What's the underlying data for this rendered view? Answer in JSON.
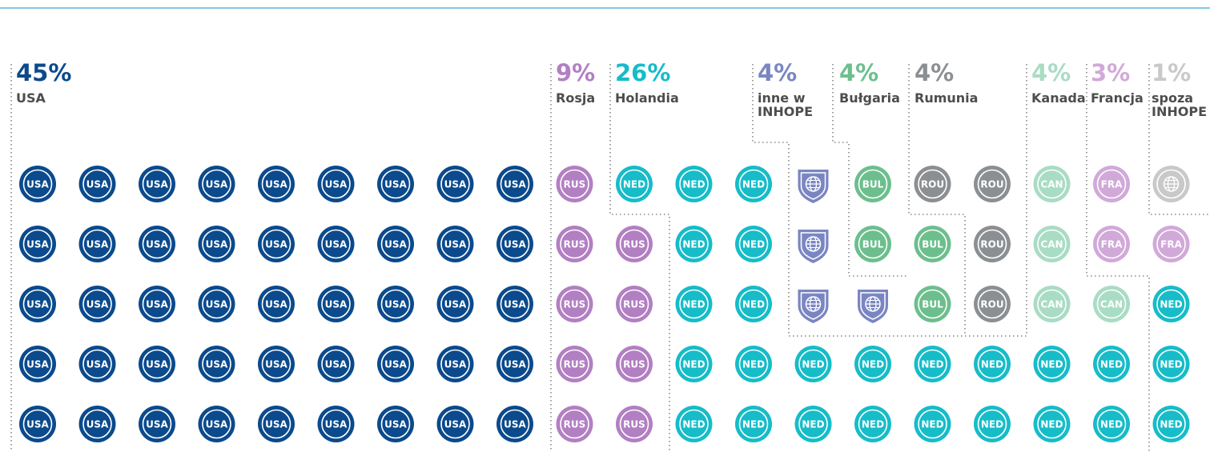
{
  "chart_data": {
    "type": "pictogram",
    "series": [
      {
        "name": "USA",
        "code": "USA",
        "color": "#0b4a8c",
        "values": [
          45
        ],
        "value_labels": [
          "45%"
        ]
      },
      {
        "name": "Rosja",
        "code": "RUS",
        "color": "#b27fc2",
        "values": [
          9
        ],
        "value_labels": [
          "9%"
        ]
      },
      {
        "name": "Holandia",
        "code": "NED",
        "color": "#16bcc8",
        "values": [
          26
        ],
        "value_labels": [
          "26%"
        ]
      },
      {
        "name": "inne w INHOPE",
        "color": "#7a86c2",
        "values": [
          4
        ],
        "value_labels": [
          "4%"
        ]
      },
      {
        "name": "Bułgaria",
        "code": "BUL",
        "color": "#6cbf8d",
        "values": [
          4
        ],
        "value_labels": [
          "4%"
        ]
      },
      {
        "name": "Rumunia",
        "code": "ROU",
        "color": "#8c8f92",
        "values": [
          4
        ],
        "value_labels": [
          "4%"
        ]
      },
      {
        "name": "Kanada",
        "code": "CAN",
        "color": "#a9dcc4",
        "values": [
          4
        ],
        "value_labels": [
          "4%"
        ]
      },
      {
        "name": "Francja",
        "code": "FRA",
        "color": "#d1a9d9",
        "values": [
          3
        ],
        "value_labels": [
          "3%"
        ]
      },
      {
        "name": "spoza INHOPE",
        "color": "#c9c9c9",
        "values": [
          1
        ],
        "value_labels": [
          "1%"
        ]
      }
    ]
  }
}
